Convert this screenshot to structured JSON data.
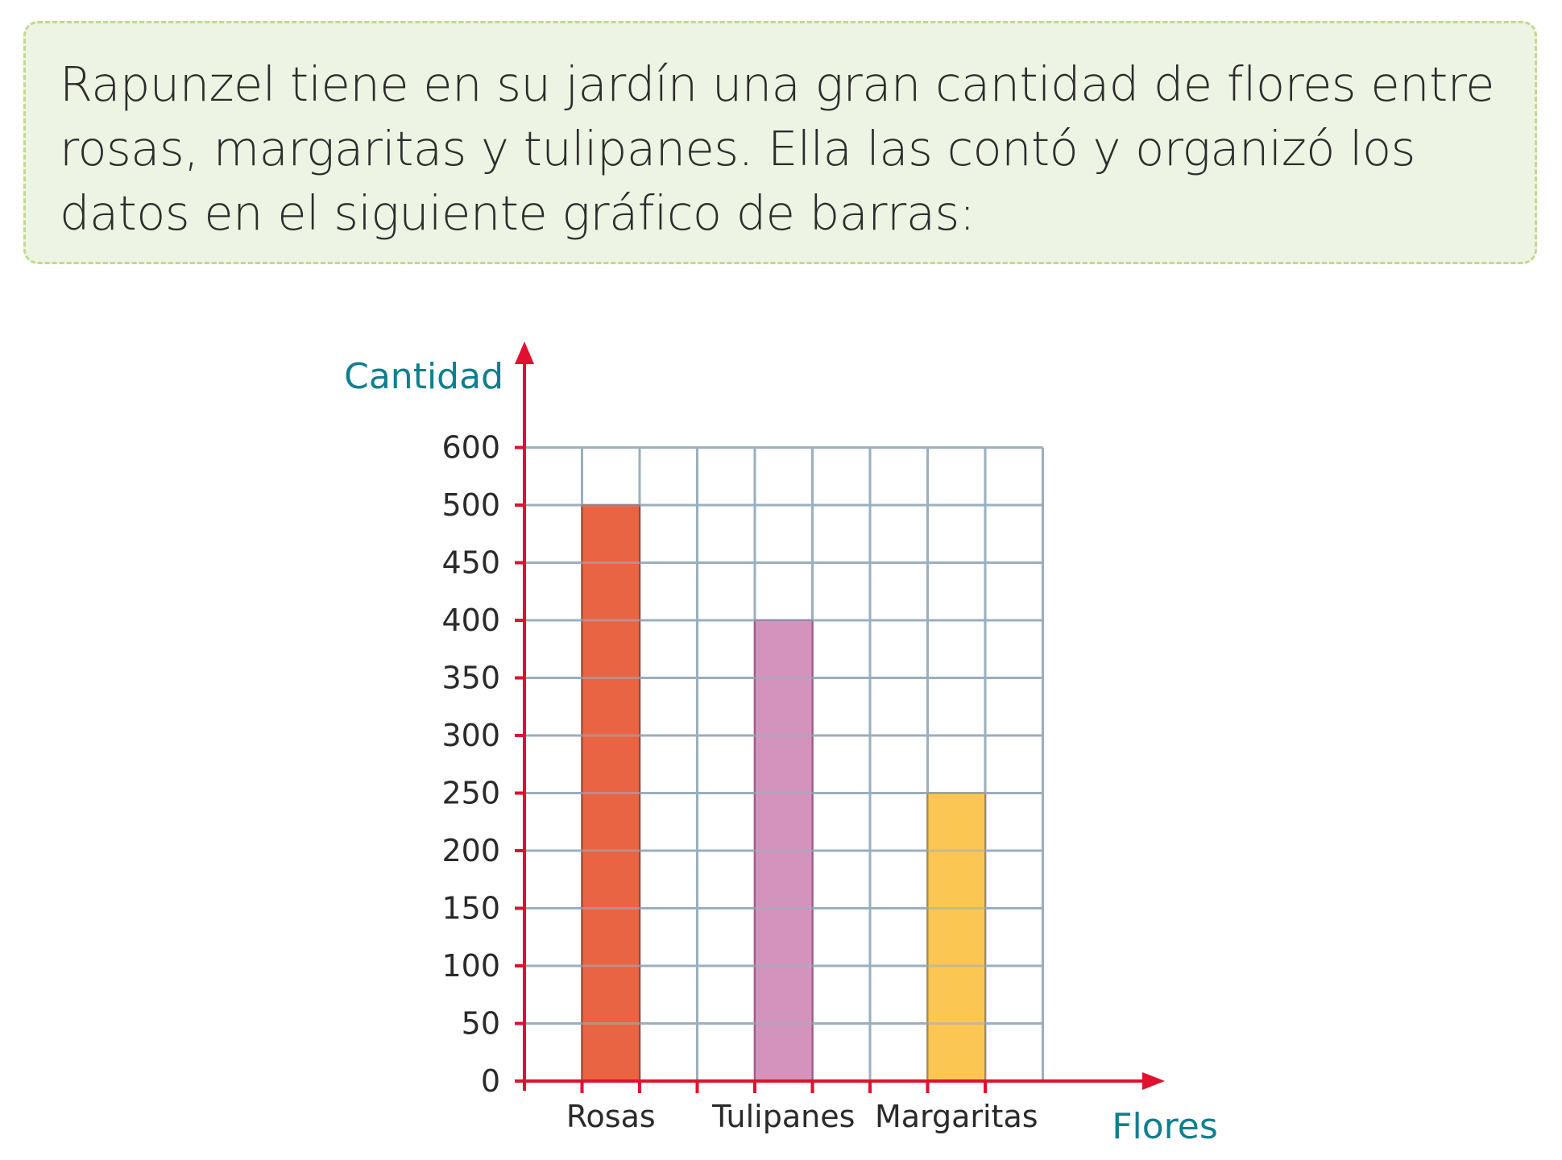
{
  "problem": {
    "text": "Rapunzel tiene en su jardín una gran cantidad de flores entre rosas, margaritas y tulipanes. Ella las contó y organizó los datos en el siguiente gráfico de barras:"
  },
  "colors": {
    "axis": "#e0102e",
    "grid": "#9aafbf",
    "axis_title": "#0e7f8f",
    "box_bg": "#edf4e3",
    "box_border": "#c2d98d"
  },
  "chart_data": {
    "type": "bar",
    "xlabel": "Flores",
    "ylabel": "Cantidad",
    "ylim": [
      0,
      600
    ],
    "yticks": [
      0,
      50,
      100,
      150,
      200,
      250,
      300,
      350,
      400,
      450,
      500,
      600
    ],
    "categories": [
      "Rosas",
      "Tulipanes",
      "Margaritas"
    ],
    "values": [
      500,
      400,
      250
    ],
    "bar_colors": [
      "#e96442",
      "#d493bd",
      "#fcc653"
    ],
    "bar_edge_colors": [
      "#a8442e",
      "#9b5a86",
      "#a88a3a"
    ],
    "grid": true
  }
}
